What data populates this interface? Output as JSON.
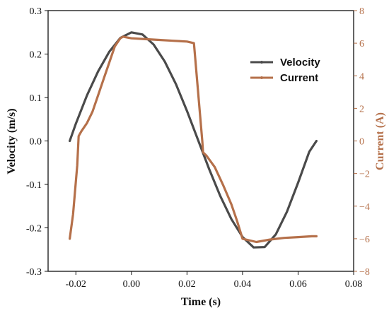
{
  "chart_data": {
    "type": "line",
    "title": "",
    "xlabel": "Time (s)",
    "ylabel": "Velocity (m/s)",
    "y2label": "Current (A)",
    "xlim": [
      -0.03,
      0.08
    ],
    "ylim": [
      -0.3,
      0.3
    ],
    "y2lim": [
      -8,
      8
    ],
    "grid": false,
    "legend_position": "top-right",
    "xticks": [
      -0.02,
      0.0,
      0.02,
      0.04,
      0.06,
      0.08
    ],
    "xtick_labels": [
      "-0.02",
      "0.00",
      "0.02",
      "0.04",
      "0.06",
      "0.08"
    ],
    "yticks": [
      -0.3,
      -0.2,
      -0.1,
      0.0,
      0.1,
      0.2,
      0.3
    ],
    "ytick_labels": [
      "-0.3",
      "-0.2",
      "-0.1",
      "0.0",
      "0.1",
      "0.2",
      "0.3"
    ],
    "y2ticks": [
      -8,
      -6,
      -4,
      -2,
      0,
      2,
      4,
      6,
      8
    ],
    "y2tick_labels": [
      "−8",
      "−6",
      "−4",
      "−2",
      "0",
      "2",
      "4",
      "6",
      "8"
    ],
    "series": [
      {
        "name": "Velocity",
        "axis": "left",
        "color": "#4a4a4a",
        "x": [
          -0.0222,
          -0.02,
          -0.016,
          -0.012,
          -0.008,
          -0.004,
          0.0,
          0.004,
          0.008,
          0.012,
          0.016,
          0.02,
          0.024,
          0.028,
          0.032,
          0.036,
          0.04,
          0.044,
          0.048,
          0.052,
          0.056,
          0.06,
          0.064,
          0.0666
        ],
        "y": [
          0.0,
          0.04,
          0.105,
          0.16,
          0.205,
          0.237,
          0.25,
          0.245,
          0.222,
          0.183,
          0.131,
          0.069,
          0.002,
          -0.065,
          -0.127,
          -0.18,
          -0.221,
          -0.245,
          -0.244,
          -0.215,
          -0.163,
          -0.096,
          -0.025,
          0.0
        ]
      },
      {
        "name": "Current",
        "axis": "right",
        "color": "#b5704a",
        "x": [
          -0.0222,
          -0.021,
          -0.0195,
          -0.019,
          -0.018,
          -0.016,
          -0.014,
          -0.012,
          -0.01,
          -0.008,
          -0.006,
          -0.004,
          -0.003,
          0.0,
          0.005,
          0.01,
          0.015,
          0.02,
          0.0225,
          0.0255,
          0.0258,
          0.027,
          0.03,
          0.033,
          0.036,
          0.038,
          0.04,
          0.045,
          0.05,
          0.055,
          0.06,
          0.065,
          0.0666
        ],
        "y": [
          -6.0,
          -4.5,
          -1.5,
          0.3,
          0.6,
          1.1,
          1.8,
          2.8,
          3.8,
          4.8,
          5.8,
          6.3,
          6.4,
          6.3,
          6.25,
          6.2,
          6.15,
          6.1,
          6.0,
          0.0,
          -0.7,
          -0.9,
          -1.6,
          -2.7,
          -3.9,
          -4.9,
          -6.0,
          -6.2,
          -6.05,
          -5.95,
          -5.9,
          -5.85,
          -5.85
        ]
      }
    ]
  }
}
